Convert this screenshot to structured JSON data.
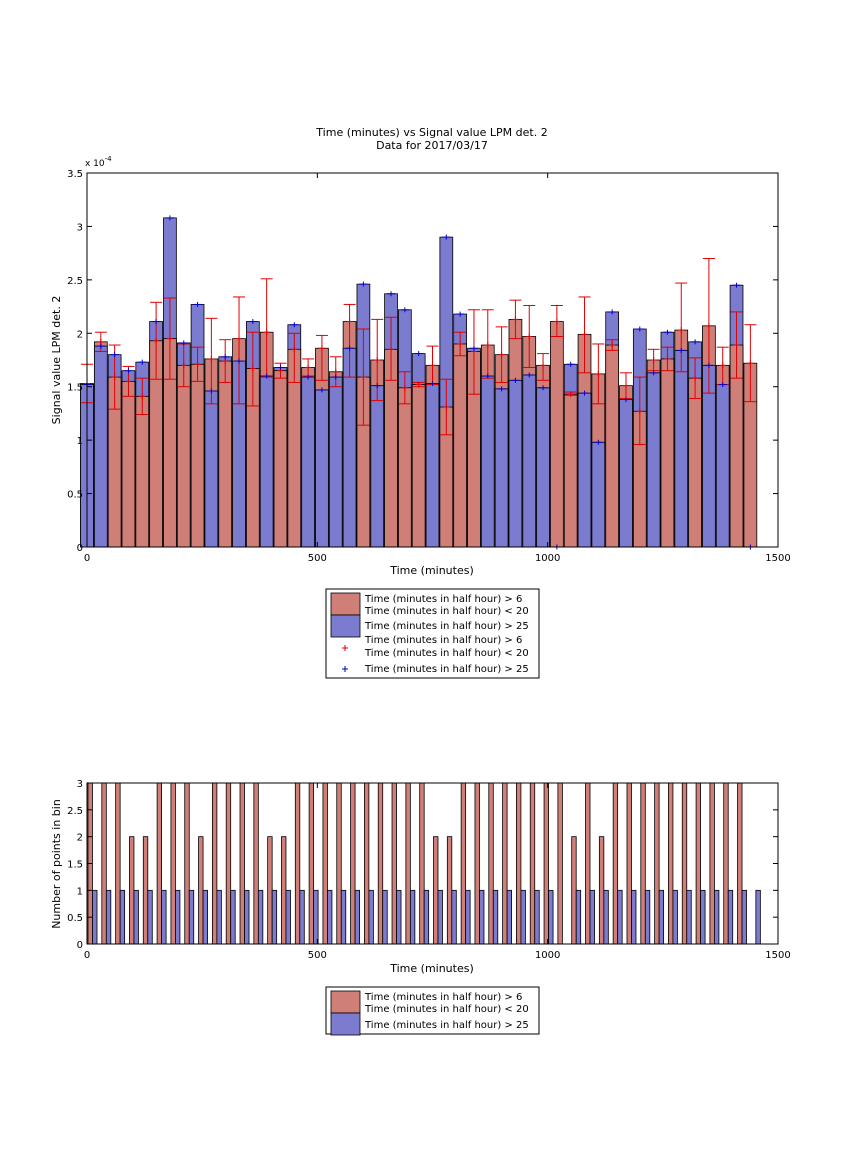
{
  "chart_data": [
    {
      "type": "bar",
      "title": "Time (minutes) vs Signal value LPM det. 2",
      "subtitle": "Data for 2017/03/17",
      "xlabel": "Time (minutes)",
      "ylabel": "Signal value LPM det. 2",
      "exponent_label": "x 10",
      "exponent_value": "-4",
      "xlim": [
        0,
        1500
      ],
      "ylim": [
        0,
        3.5
      ],
      "xticks": [
        "0",
        "500",
        "1000",
        "1500"
      ],
      "yticks": [
        "0",
        "0.5",
        "1",
        "1.5",
        "2",
        "2.5",
        "3",
        "3.5"
      ],
      "grid": false,
      "legend_position": "below-axes",
      "legend": [
        {
          "text": "Time (minutes in half hour) > 6",
          "text2": "Time (minutes in half hour) < 20",
          "kind": "patch",
          "color": "#d07f78"
        },
        {
          "text": "Time (minutes in half hour) > 25",
          "kind": "patch",
          "color": "#7b7bd0"
        },
        {
          "text": "Time (minutes in half hour) > 6",
          "text2": "Time (minutes in half hour) < 20",
          "kind": "marker",
          "color": "#e00000"
        },
        {
          "text": "Time (minutes in half hour) > 25",
          "kind": "marker",
          "color": "#0000c8"
        }
      ],
      "x": [
        0,
        30,
        60,
        90,
        120,
        150,
        180,
        210,
        240,
        270,
        300,
        330,
        360,
        390,
        420,
        450,
        480,
        510,
        540,
        570,
        600,
        630,
        660,
        690,
        720,
        750,
        780,
        810,
        840,
        870,
        900,
        930,
        960,
        990,
        1020,
        1050,
        1080,
        1110,
        1140,
        1170,
        1200,
        1230,
        1260,
        1290,
        1320,
        1350,
        1380,
        1410,
        1440
      ],
      "series": [
        {
          "name": "Time (minutes in half hour) > 6",
          "name2": "Time (minutes in half hour) < 20",
          "color": "#d07f78",
          "values": [
            1.53,
            1.92,
            1.59,
            1.55,
            1.41,
            1.93,
            1.95,
            1.7,
            1.71,
            1.76,
            1.74,
            1.95,
            1.67,
            2.01,
            1.65,
            1.85,
            1.68,
            1.86,
            1.64,
            2.11,
            1.59,
            1.75,
            1.85,
            1.49,
            1.52,
            1.7,
            1.31,
            1.9,
            1.83,
            1.89,
            1.8,
            2.13,
            1.97,
            1.7,
            2.11,
            1.43,
            1.99,
            1.62,
            1.89,
            1.51,
            1.27,
            1.75,
            1.76,
            2.03,
            1.58,
            2.07,
            1.7,
            1.89,
            1.72
          ],
          "err_low": [
            1.35,
            1.83,
            1.29,
            1.41,
            1.24,
            1.57,
            1.57,
            1.5,
            1.55,
            1.34,
            1.54,
            1.34,
            1.32,
            1.59,
            1.58,
            1.54,
            1.6,
            1.56,
            1.5,
            1.59,
            1.14,
            1.37,
            1.56,
            1.34,
            1.5,
            1.52,
            1.05,
            1.79,
            1.43,
            1.58,
            1.54,
            1.95,
            1.68,
            1.56,
            1.97,
            1.42,
            1.63,
            1.34,
            1.84,
            1.39,
            0.96,
            1.65,
            1.65,
            1.64,
            1.39,
            1.44,
            1.52,
            1.58,
            1.36
          ],
          "err_high": [
            1.71,
            2.01,
            1.89,
            1.69,
            1.58,
            2.29,
            2.33,
            1.9,
            1.87,
            2.14,
            1.94,
            2.34,
            2.01,
            2.51,
            1.72,
            2.0,
            1.76,
            1.98,
            1.78,
            2.27,
            2.04,
            2.13,
            2.15,
            1.64,
            1.54,
            1.88,
            1.57,
            2.01,
            2.22,
            2.22,
            2.06,
            2.31,
            2.26,
            1.81,
            2.26,
            1.45,
            2.34,
            1.9,
            1.94,
            1.63,
            1.59,
            1.85,
            1.87,
            2.47,
            1.77,
            2.7,
            1.87,
            2.2,
            2.08
          ]
        },
        {
          "name": "Time (minutes in half hour) > 25",
          "color": "#7b7bd0",
          "values": [
            1.52,
            1.88,
            1.8,
            1.65,
            1.73,
            2.11,
            3.08,
            1.91,
            2.27,
            1.46,
            1.78,
            1.74,
            2.11,
            1.6,
            1.68,
            2.08,
            1.59,
            1.47,
            1.59,
            1.86,
            2.46,
            1.51,
            2.37,
            2.22,
            1.81,
            1.53,
            2.9,
            2.18,
            1.86,
            1.6,
            1.48,
            1.56,
            1.61,
            1.49,
            0.0,
            1.71,
            1.44,
            0.98,
            2.2,
            1.38,
            2.04,
            1.63,
            2.01,
            1.84,
            1.92,
            1.7,
            1.52,
            2.45,
            0
          ]
        }
      ]
    },
    {
      "type": "bar",
      "xlabel": "Time (minutes)",
      "ylabel": "Number of points in bin",
      "xlim": [
        0,
        1500
      ],
      "ylim": [
        0,
        3
      ],
      "xticks": [
        "0",
        "500",
        "1000",
        "1500"
      ],
      "yticks": [
        "0",
        "0.5",
        "1",
        "1.5",
        "2",
        "2.5",
        "3"
      ],
      "grid": false,
      "legend_position": "below-axes",
      "legend": [
        {
          "text": "Time (minutes in half hour) > 6",
          "text2": "Time (minutes in half hour) < 20",
          "kind": "patch",
          "color": "#d07f78"
        },
        {
          "text": "Time (minutes in half hour) > 25",
          "kind": "patch",
          "color": "#7b7bd0"
        }
      ],
      "x": [
        0,
        30,
        60,
        90,
        120,
        150,
        180,
        210,
        240,
        270,
        300,
        330,
        360,
        390,
        420,
        450,
        480,
        510,
        540,
        570,
        600,
        630,
        660,
        690,
        720,
        750,
        780,
        810,
        840,
        870,
        900,
        930,
        960,
        990,
        1020,
        1050,
        1080,
        1110,
        1140,
        1170,
        1200,
        1230,
        1260,
        1290,
        1320,
        1350,
        1380,
        1410,
        1440
      ],
      "series": [
        {
          "name": "Time (minutes in half hour) > 6",
          "name2": "Time (minutes in half hour) < 20",
          "color": "#d07f78",
          "values": [
            3,
            3,
            3,
            2,
            2,
            3,
            3,
            3,
            2,
            3,
            3,
            3,
            3,
            2,
            2,
            3,
            3,
            3,
            3,
            3,
            3,
            3,
            3,
            3,
            3,
            2,
            2,
            3,
            3,
            3,
            3,
            3,
            3,
            3,
            3,
            2,
            3,
            2,
            3,
            3,
            3,
            3,
            3,
            3,
            3,
            3,
            3,
            3,
            0
          ]
        },
        {
          "name": "Time (minutes in half hour) > 25",
          "color": "#7b7bd0",
          "values": [
            1,
            1,
            1,
            1,
            1,
            1,
            1,
            1,
            1,
            1,
            1,
            1,
            1,
            1,
            1,
            1,
            1,
            1,
            1,
            1,
            1,
            1,
            1,
            1,
            1,
            1,
            1,
            1,
            1,
            1,
            1,
            1,
            1,
            1,
            0,
            1,
            1,
            1,
            1,
            1,
            1,
            1,
            1,
            1,
            1,
            1,
            1,
            1,
            1
          ]
        }
      ]
    }
  ]
}
